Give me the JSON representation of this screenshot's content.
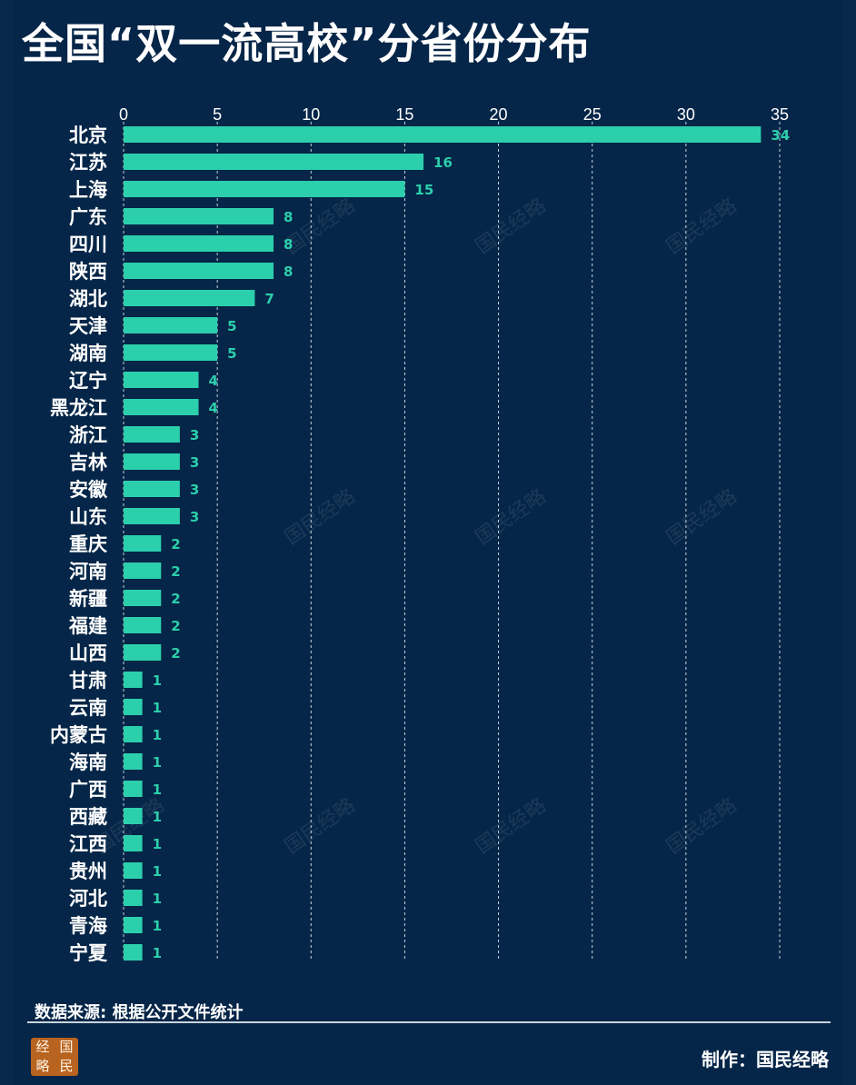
{
  "title": "全国“双一流高校”分省份分布",
  "source": "数据来源: 根据公开文件统计",
  "credit": "制作：国民经略",
  "logo_chars": [
    "经",
    "国",
    "略",
    "民"
  ],
  "watermark_text": "国民经略",
  "colors": {
    "background": "#052648",
    "bar": "#2ccfac",
    "value_label": "#2ccfac",
    "grid": "#c8d2dc",
    "text": "#ffffff"
  },
  "chart_data": {
    "type": "bar",
    "orientation": "horizontal",
    "title": "全国“双一流高校”分省份分布",
    "xlabel": "",
    "ylabel": "",
    "xlim": [
      0,
      35
    ],
    "xticks": [
      0,
      5,
      10,
      15,
      20,
      25,
      30,
      35
    ],
    "grid": true,
    "x_axis_position": "top",
    "categories": [
      "北京",
      "江苏",
      "上海",
      "广东",
      "四川",
      "陕西",
      "湖北",
      "天津",
      "湖南",
      "辽宁",
      "黑龙江",
      "浙江",
      "吉林",
      "安徽",
      "山东",
      "重庆",
      "河南",
      "新疆",
      "福建",
      "山西",
      "甘肃",
      "云南",
      "内蒙古",
      "海南",
      "广西",
      "西藏",
      "江西",
      "贵州",
      "河北",
      "青海",
      "宁夏"
    ],
    "values": [
      34,
      16,
      15,
      8,
      8,
      8,
      7,
      5,
      5,
      4,
      4,
      3,
      3,
      3,
      3,
      2,
      2,
      2,
      2,
      2,
      1,
      1,
      1,
      1,
      1,
      1,
      1,
      1,
      1,
      1,
      1
    ]
  }
}
